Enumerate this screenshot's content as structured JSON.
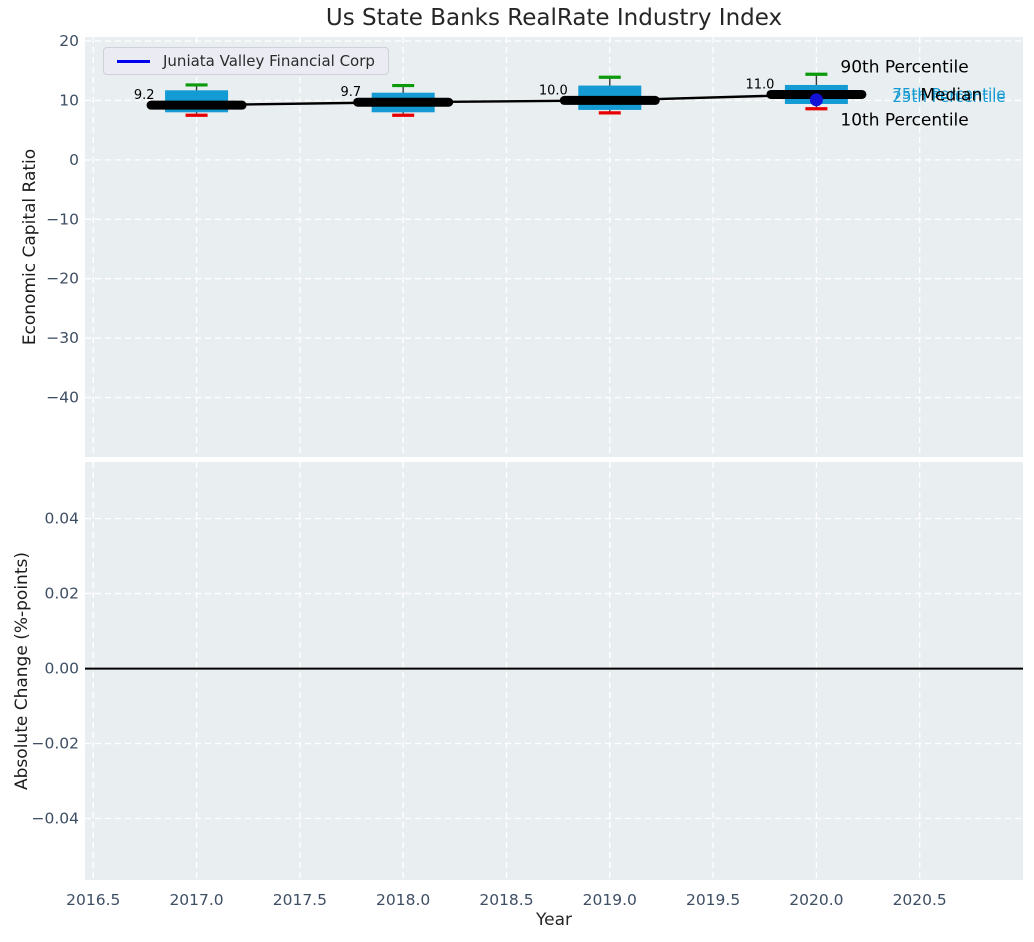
{
  "chart_data": {
    "type": "boxplot",
    "title": "Us State Banks RealRate Industry Index",
    "xlabel": "Year",
    "xlim": [
      2016.46,
      2021.0
    ],
    "xticks": {
      "values": [
        2016.5,
        2017.0,
        2017.5,
        2018.0,
        2018.5,
        2019.0,
        2019.5,
        2020.0,
        2020.5
      ],
      "labels": [
        "2016.5",
        "2017.0",
        "2017.5",
        "2018.0",
        "2018.5",
        "2019.0",
        "2019.5",
        "2020.0",
        "2020.5"
      ]
    },
    "panels": [
      {
        "ylabel": "Economic Capital Ratio",
        "ylim": [
          -50,
          20.67
        ],
        "yticks": {
          "values": [
            20,
            10,
            0,
            -10,
            -20,
            -30,
            -40
          ],
          "labels": [
            "20",
            "10",
            "0",
            "−10",
            "−20",
            "−30",
            "−40"
          ]
        },
        "grid": true
      },
      {
        "ylabel": "Absolute Change (%-points)",
        "ylim": [
          -0.0564,
          0.0551
        ],
        "yticks": {
          "values": [
            0.04,
            0.02,
            0,
            -0.02,
            -0.04
          ],
          "labels": [
            "0.04",
            "0.02",
            "0.00",
            "−0.02",
            "−0.04"
          ]
        },
        "grid": true,
        "zero_line": 0
      }
    ],
    "boxes": [
      {
        "year": 2017,
        "median": 9.2,
        "p25": 8.0,
        "p75": 11.7,
        "p10": 7.5,
        "p90": 12.6,
        "median_label": "9.2"
      },
      {
        "year": 2018,
        "median": 9.7,
        "p25": 8.0,
        "p75": 11.3,
        "p10": 7.5,
        "p90": 12.5,
        "median_label": "9.7"
      },
      {
        "year": 2019,
        "median": 10.0,
        "p25": 8.4,
        "p75": 12.5,
        "p10": 7.9,
        "p90": 13.9,
        "median_label": "10.0"
      },
      {
        "year": 2020,
        "median": 11.0,
        "p25": 9.4,
        "p75": 12.6,
        "p10": 8.6,
        "p90": 14.4,
        "median_label": "11.0"
      }
    ],
    "company_series": {
      "name": "Juniata Valley Financial Corp",
      "points": [
        {
          "year": 2020,
          "value": 10.1
        }
      ]
    },
    "callouts": {
      "p90": "90th Percentile",
      "p75": "75th Percentile",
      "median": "Median",
      "p25": "25th Percentile",
      "p10": "10th Percentile"
    },
    "legend": {
      "label": "Juniata Valley Financial Corp",
      "position": "upper left"
    }
  },
  "colors": {
    "axes_bg": "#e9eef0",
    "grid": "#ffffff",
    "box_fill": "#149bd3",
    "cap_top": "#0c9a0c",
    "cap_bottom": "#e80000",
    "whisker": "#3a3a3a",
    "median_band": "#000000",
    "trend_line": "#000000",
    "company_dot": "#1212d6",
    "legend_line": "#0000ee",
    "tick_text": "#3e4e63",
    "label_text": "#262626",
    "annotation_text": "#000000",
    "percentile_text": "#149bd3",
    "zero_line": "#000000"
  }
}
